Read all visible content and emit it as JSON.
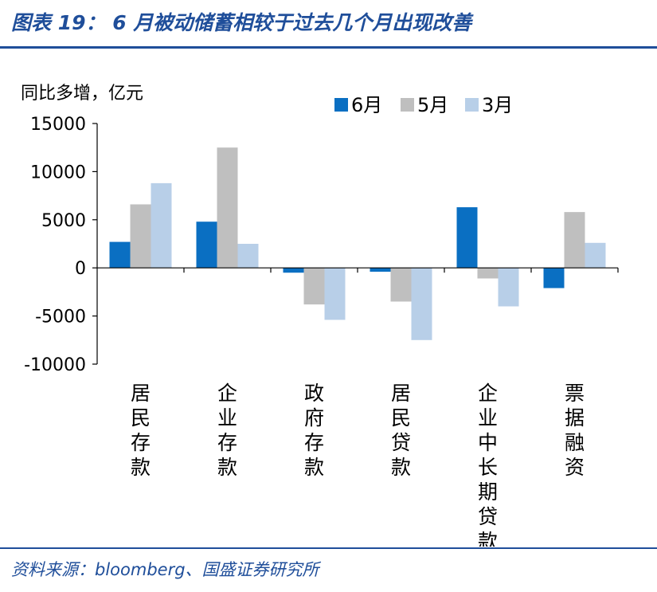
{
  "header": {
    "title": "图表 19：  6 月被动储蓄相较于过去几个月出现改善"
  },
  "footer": {
    "source": "资料来源：bloomberg、国盛证券研究所"
  },
  "chart_data": {
    "type": "bar",
    "ylabel": "同比多增，亿元",
    "categories": [
      "居民存款",
      "企业存款",
      "政府存款",
      "居民贷款",
      "企业中长期贷款",
      "票据融资"
    ],
    "series": [
      {
        "name": "6月",
        "color": "#0a6fc2",
        "values": [
          2700,
          4800,
          -500,
          -400,
          6300,
          -2100
        ]
      },
      {
        "name": "5月",
        "color": "#bfbfbf",
        "values": [
          6600,
          12500,
          -3800,
          -3500,
          -1100,
          5800
        ]
      },
      {
        "name": "3月",
        "color": "#b8cfe8",
        "values": [
          8800,
          2500,
          -5400,
          -7500,
          -4000,
          2600
        ]
      }
    ],
    "ylim": [
      -10000,
      15000
    ],
    "yticks": [
      "15000",
      "10000",
      "5000",
      "0",
      "-5000",
      "-10000"
    ],
    "legend": "top-right",
    "grid": false
  }
}
